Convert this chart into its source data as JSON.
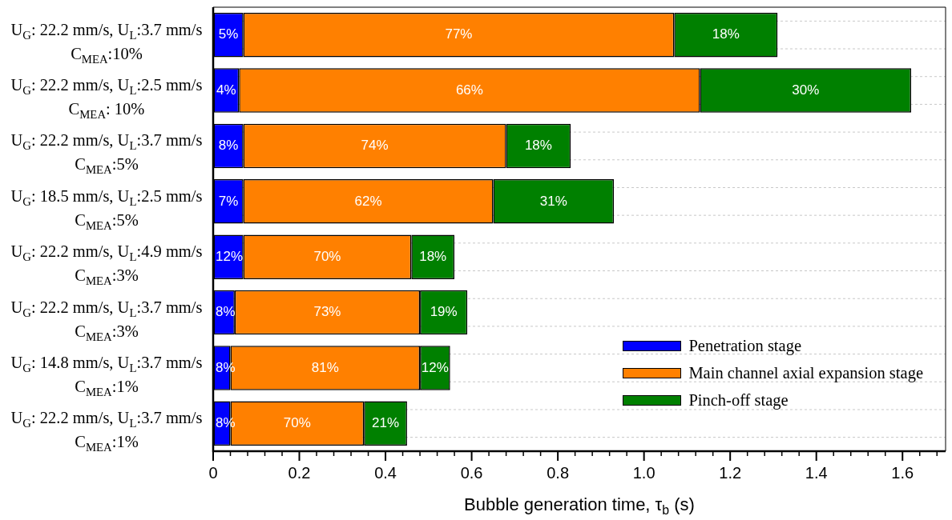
{
  "chart_data": {
    "type": "bar",
    "orientation": "horizontal",
    "stacked": true,
    "xlabel": "Bubble generation time, τ$_{b}$ (s)",
    "categories": [
      "U$_{G}$: 22.2 mm/s, U$_{L}$:3.7 mm/s\nC$_{MEA}$:10%",
      "U$_{G}$: 22.2 mm/s, U$_{L}$:2.5 mm/s\nC$_{MEA}$: 10%",
      "U$_{G}$: 22.2 mm/s, U$_{L}$:3.7 mm/s\nC$_{MEA}$:5%",
      "U$_{G}$: 18.5 mm/s, U$_{L}$:2.5 mm/s\nC$_{MEA}$:5%",
      "U$_{G}$: 22.2 mm/s, U$_{L}$:4.9 mm/s\nC$_{MEA}$:3%",
      "U$_{G}$: 22.2 mm/s, U$_{L}$:3.7 mm/s\nC$_{MEA}$:3%",
      "U$_{G}$: 14.8 mm/s, U$_{L}$:3.7 mm/s\nC$_{MEA}$:1%",
      "U$_{G}$: 22.2 mm/s, U$_{L}$:3.7 mm/s\nC$_{MEA}$:1%"
    ],
    "series": [
      {
        "name": "Penetration stage",
        "color": "#0000ff",
        "values": [
          0.07,
          0.06,
          0.07,
          0.07,
          0.07,
          0.05,
          0.04,
          0.04
        ]
      },
      {
        "name": "Main channel axial expansion stage",
        "color": "#ff8000",
        "values": [
          1.0,
          1.07,
          0.61,
          0.58,
          0.39,
          0.43,
          0.44,
          0.31
        ]
      },
      {
        "name": "Pinch-off stage",
        "color": "#008000",
        "values": [
          0.24,
          0.49,
          0.15,
          0.28,
          0.1,
          0.11,
          0.07,
          0.1
        ]
      }
    ],
    "annotations": [
      "5%",
      "77%",
      "18%",
      "4%",
      "66%",
      "30%",
      "8%",
      "74%",
      "18%",
      "7%",
      "62%",
      "31%",
      "12%",
      "70%",
      "18%",
      "8%",
      "73%",
      "19%",
      "8%",
      "81%",
      "12%",
      "8%",
      "70%",
      "21%"
    ],
    "xlim": [
      0,
      1.7
    ],
    "xticks": [
      0,
      {
        "value": 0.04,
        "label": null
      },
      {
        "value": 0.08,
        "label": null
      },
      {
        "value": 0.12,
        "label": null
      },
      {
        "value": 0.16,
        "label": null
      },
      0.2,
      {
        "value": 0.24,
        "label": null
      },
      {
        "value": 0.28,
        "label": null
      },
      {
        "value": 0.32,
        "label": null
      },
      {
        "value": 0.36,
        "label": null
      },
      0.4,
      {
        "value": 0.44,
        "label": null
      },
      {
        "value": 0.48,
        "label": null
      },
      {
        "value": 0.52,
        "label": null
      },
      {
        "value": 0.56,
        "label": null
      },
      0.6,
      {
        "value": 0.64,
        "label": null
      },
      {
        "value": 0.68,
        "label": null
      },
      {
        "value": 0.72,
        "label": null
      },
      {
        "value": 0.76,
        "label": null
      },
      0.8,
      {
        "value": 0.84,
        "label": null
      },
      {
        "value": 0.88,
        "label": null
      },
      {
        "value": 0.92,
        "label": null
      },
      {
        "value": 0.96,
        "label": null
      },
      {
        "value": 1,
        "label": "1.0"
      },
      {
        "value": 1.04,
        "label": null
      },
      {
        "value": 1.08,
        "label": null
      },
      {
        "value": 1.12,
        "label": null
      },
      {
        "value": 1.16,
        "label": null
      },
      1.2,
      {
        "value": 1.24,
        "label": null
      },
      {
        "value": 1.28,
        "label": null
      },
      {
        "value": 1.32,
        "label": null
      },
      {
        "value": 1.36,
        "label": null
      },
      1.4,
      {
        "value": 1.44,
        "label": null
      },
      {
        "value": 1.48,
        "label": null
      },
      {
        "value": 1.52,
        "label": null
      },
      {
        "value": 1.56,
        "label": null
      },
      1.6,
      {
        "value": 1.64,
        "label": null
      },
      {
        "value": 1.68,
        "label": null
      }
    ],
    "grid": "y",
    "legend": "bottom right"
  }
}
